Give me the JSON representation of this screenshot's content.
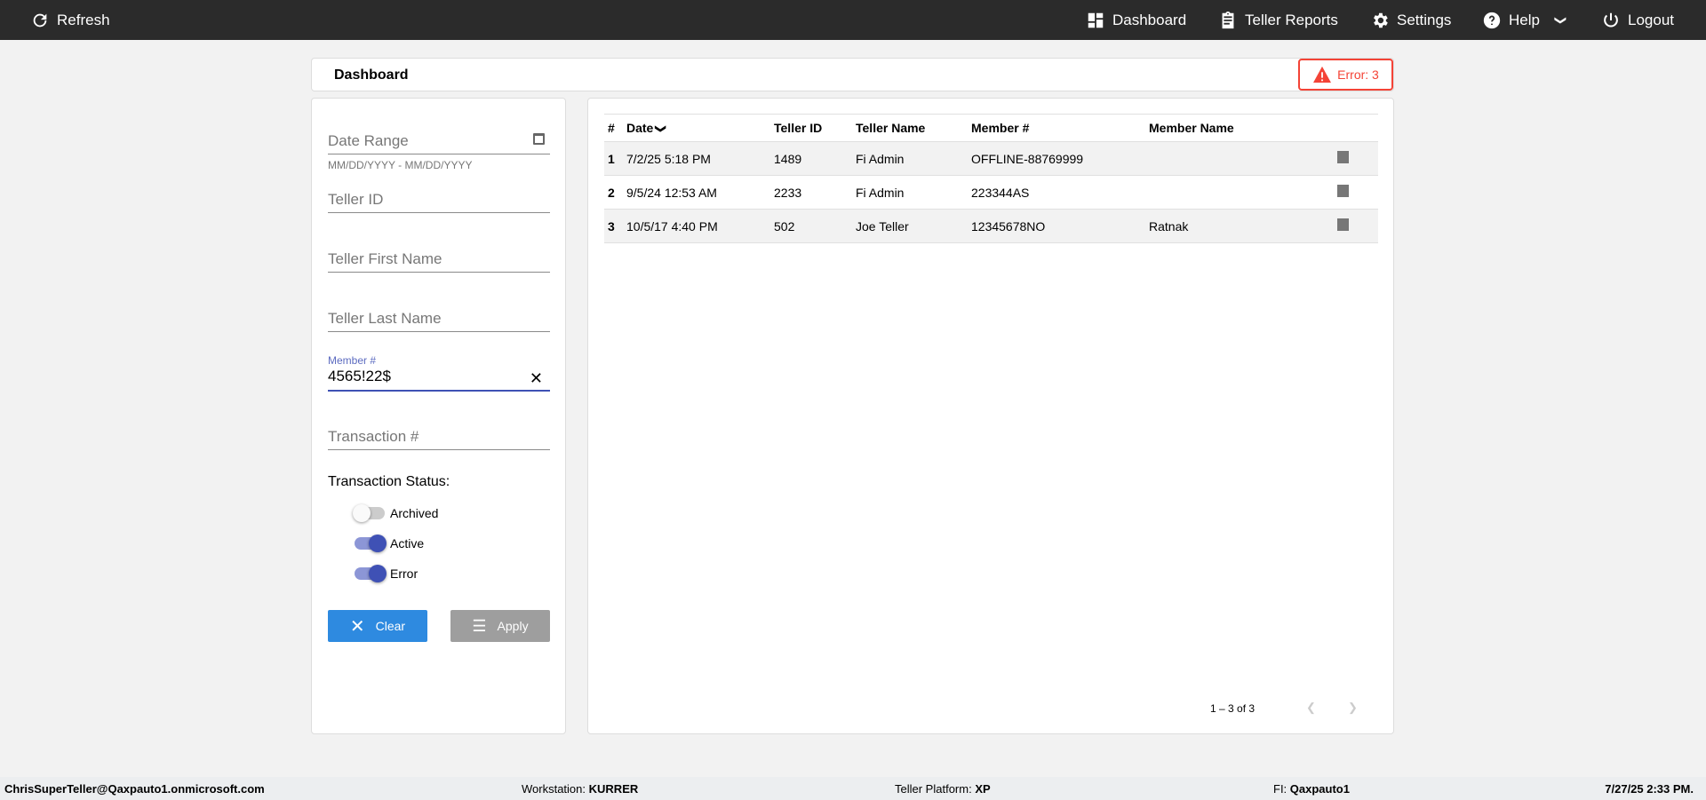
{
  "nav": {
    "refresh": "Refresh",
    "dashboard": "Dashboard",
    "teller_reports": "Teller Reports",
    "settings": "Settings",
    "help": "Help",
    "logout": "Logout"
  },
  "header": {
    "title": "Dashboard",
    "error_badge": "Error: 3"
  },
  "filters": {
    "date_range": {
      "label": "Date Range",
      "hint": "MM/DD/YYYY - MM/DD/YYYY"
    },
    "teller_id": "Teller ID",
    "teller_first_name": "Teller First Name",
    "teller_last_name": "Teller Last Name",
    "member": {
      "label": "Member #",
      "value": "4565!22$"
    },
    "transaction": "Transaction #",
    "status_label": "Transaction Status:",
    "toggles": [
      {
        "label": "Archived",
        "on": false
      },
      {
        "label": "Active",
        "on": true
      },
      {
        "label": "Error",
        "on": true
      }
    ],
    "clear": "Clear",
    "apply": "Apply"
  },
  "table": {
    "headers": [
      "#",
      "Date",
      "Teller ID",
      "Teller Name",
      "Member #",
      "Member Name"
    ],
    "rows": [
      {
        "n": "1",
        "date": "7/2/25 5:18 PM",
        "teller_id": "1489",
        "teller_name": "Fi Admin",
        "member": "OFFLINE-88769999",
        "member_name": ""
      },
      {
        "n": "2",
        "date": "9/5/24 12:53 AM",
        "teller_id": "2233",
        "teller_name": "Fi Admin",
        "member": "223344AS",
        "member_name": ""
      },
      {
        "n": "3",
        "date": "10/5/17 4:40 PM",
        "teller_id": "502",
        "teller_name": "Joe Teller",
        "member": "12345678NO",
        "member_name": "Ratnak"
      }
    ],
    "pagination": "1 – 3 of 3"
  },
  "footer": {
    "user": "ChrisSuperTeller@Qaxpauto1.onmicrosoft.com",
    "workstation_label": "Workstation:",
    "workstation": "KURRER",
    "platform_label": "Teller Platform:",
    "platform": "XP",
    "fi_label": "FI:",
    "fi": "Qaxpauto1",
    "datetime": "7/27/25 2:33 PM."
  },
  "colors": {
    "nav": "#2b2b2b",
    "error": "#f44336",
    "primary": "#3f51b5",
    "clear": "#2e8ae0",
    "apply": "#9e9e9e"
  }
}
